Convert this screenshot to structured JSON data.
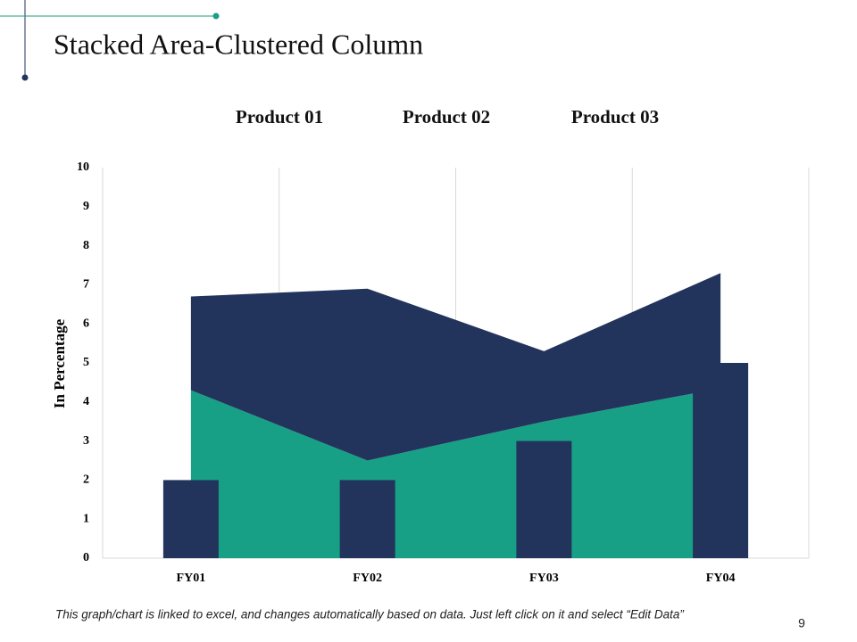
{
  "chart_data": {
    "type": "combo",
    "title": "Stacked Area-Clustered Column",
    "categories": [
      "FY01",
      "FY02",
      "FY03",
      "FY04"
    ],
    "series": [
      {
        "name": "Product 01",
        "type": "bar",
        "color": "#22335c",
        "values": [
          2,
          2,
          3,
          5
        ]
      },
      {
        "name": "Product 02",
        "type": "area",
        "color": "#18a086",
        "values": [
          4.3,
          2.5,
          3.5,
          4.35
        ]
      },
      {
        "name": "Product 03",
        "type": "area",
        "color": "#22335c",
        "values": [
          2.4,
          4.4,
          1.8,
          2.95
        ]
      }
    ],
    "ylabel": "In Percentage",
    "ylim": [
      0,
      10
    ],
    "yticks": [
      0,
      1,
      2,
      3,
      4,
      5,
      6,
      7,
      8,
      9,
      10
    ],
    "grid": true,
    "legend": "top"
  },
  "footer": "This graph/chart is linked to excel, and changes automatically based on data. Just left click on it and select “Edit Data”",
  "page_number": "9"
}
